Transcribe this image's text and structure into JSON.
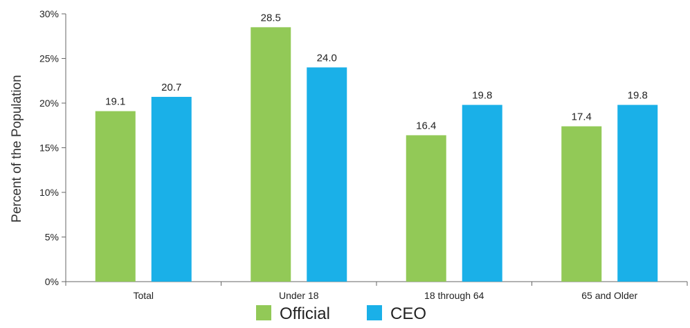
{
  "chart_data": {
    "type": "bar",
    "categories": [
      "Total",
      "Under 18",
      "18 through 64",
      "65 and Older"
    ],
    "series": [
      {
        "name": "Official",
        "values": [
          19.1,
          28.5,
          16.4,
          17.4
        ],
        "labels": [
          "19.1",
          "28.5",
          "16.4",
          "17.4"
        ],
        "color": "#92C957"
      },
      {
        "name": "CEO",
        "values": [
          20.7,
          24.0,
          19.8,
          19.8
        ],
        "labels": [
          "20.7",
          "24.0",
          "19.8",
          "19.8"
        ],
        "color": "#1AB0E8"
      }
    ],
    "ylabel": "Percent of the Population",
    "ylim": [
      0,
      30
    ],
    "yticks": [
      0,
      5,
      10,
      15,
      20,
      25,
      30
    ],
    "ytick_labels": [
      "0%",
      "5%",
      "10%",
      "15%",
      "20%",
      "25%",
      "30%"
    ],
    "legend": {
      "placement": "bottom-center",
      "items": [
        "Official",
        "CEO"
      ]
    },
    "grid": false
  }
}
